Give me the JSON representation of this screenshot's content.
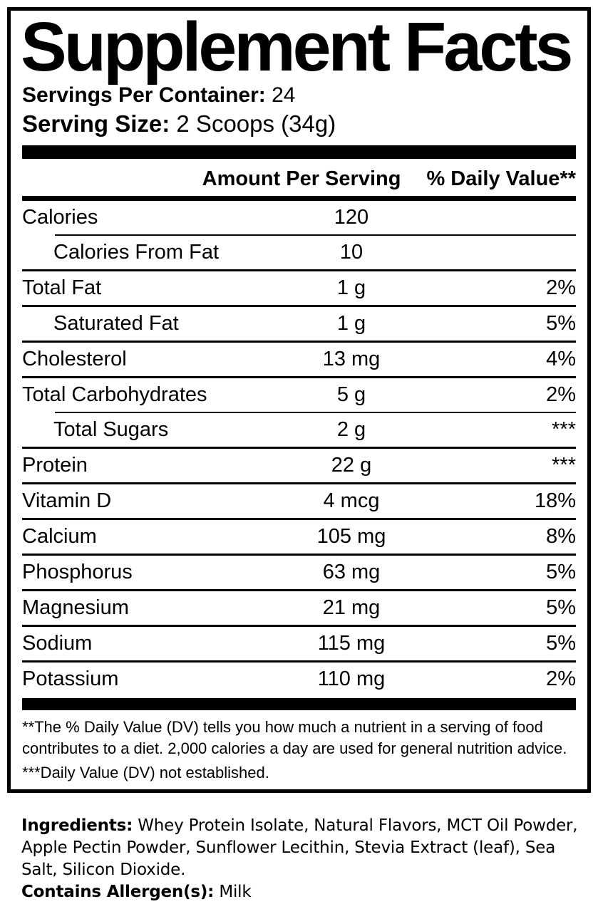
{
  "label": {
    "title": "Supplement Facts",
    "servings_per_container": {
      "label": "Servings Per Container:",
      "value": "24"
    },
    "serving_size": {
      "label": "Serving Size:",
      "value": "2 Scoops (34g)"
    },
    "columns": {
      "amount": "Amount Per Serving",
      "daily_value": "% Daily Value**"
    },
    "nutrients": [
      {
        "name": "Calories",
        "amount": "120",
        "dv": "",
        "indent": false,
        "sep": "none"
      },
      {
        "name": "Calories From Fat",
        "amount": "10",
        "dv": "",
        "indent": true,
        "sep": "indent"
      },
      {
        "name": "Total Fat",
        "amount": "1 g",
        "dv": "2%",
        "indent": false,
        "sep": "full"
      },
      {
        "name": "Saturated Fat",
        "amount": "1 g",
        "dv": "5%",
        "indent": true,
        "sep": "full"
      },
      {
        "name": "Cholesterol",
        "amount": "13 mg",
        "dv": "4%",
        "indent": false,
        "sep": "full"
      },
      {
        "name": "Total Carbohydrates",
        "amount": "5 g",
        "dv": "2%",
        "indent": false,
        "sep": "full"
      },
      {
        "name": "Total Sugars",
        "amount": "2 g",
        "dv": "***",
        "indent": true,
        "sep": "indent"
      },
      {
        "name": "Protein",
        "amount": "22 g",
        "dv": "***",
        "indent": false,
        "sep": "full"
      },
      {
        "name": "Vitamin D",
        "amount": "4 mcg",
        "dv": "18%",
        "indent": false,
        "sep": "full"
      },
      {
        "name": "Calcium",
        "amount": "105 mg",
        "dv": "8%",
        "indent": false,
        "sep": "full"
      },
      {
        "name": "Phosphorus",
        "amount": "63 mg",
        "dv": "5%",
        "indent": false,
        "sep": "full"
      },
      {
        "name": "Magnesium",
        "amount": "21 mg",
        "dv": "5%",
        "indent": false,
        "sep": "full"
      },
      {
        "name": "Sodium",
        "amount": "115 mg",
        "dv": "5%",
        "indent": false,
        "sep": "full"
      },
      {
        "name": "Potassium",
        "amount": "110 mg",
        "dv": "2%",
        "indent": false,
        "sep": "full"
      }
    ],
    "footnotes": {
      "daily_value": "**The % Daily Value (DV) tells you how much a nutrient in a serving of food contributes to a diet. 2,000 calories a day are used for general nutrition advice.",
      "not_established": "***Daily Value (DV) not established."
    }
  },
  "ingredients": {
    "label": "Ingredients:",
    "text": "Whey Protein Isolate, Natural Flavors, MCT Oil Powder, Apple Pectin Powder, Sunflower Lecithin, Stevia Extract (leaf), Sea Salt, Silicon Dioxide.",
    "allergen_label": "Contains Allergen(s):",
    "allergen_value": "Milk"
  },
  "colors": {
    "text": "#000000",
    "background": "#ffffff"
  }
}
